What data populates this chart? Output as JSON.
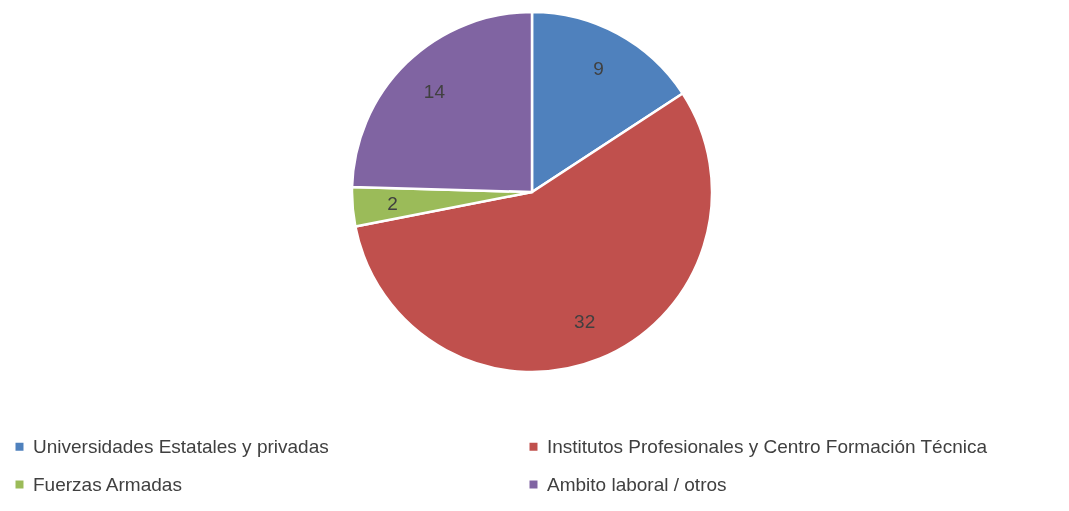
{
  "chart_data": {
    "type": "pie",
    "categories": [
      "Universidades Estatales y privadas",
      "Institutos Profesionales y Centro Formación Técnica",
      "Fuerzas Armadas",
      "Ambito laboral / otros"
    ],
    "values": [
      9,
      32,
      2,
      14
    ],
    "colors": [
      "#4f81bd",
      "#c0504d",
      "#9bbb59",
      "#8064a2"
    ],
    "data_labels": true,
    "legend": "bottom"
  }
}
